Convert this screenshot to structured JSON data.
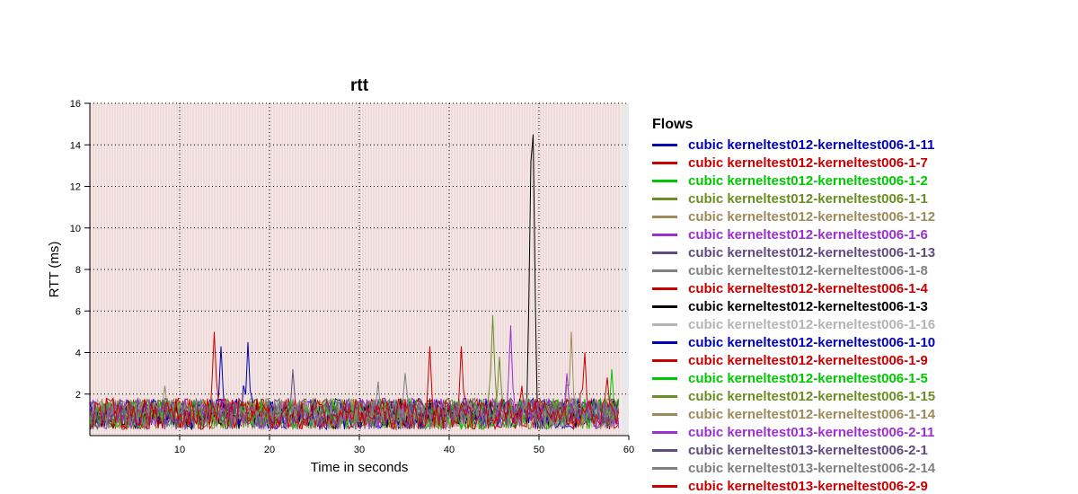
{
  "chart_data": {
    "type": "line",
    "title": "rtt",
    "xlabel": "Time in seconds",
    "ylabel": "RTT (ms)",
    "xlim": [
      0,
      60
    ],
    "ylim": [
      0,
      16
    ],
    "xticks": [
      10,
      20,
      30,
      40,
      50,
      60
    ],
    "yticks": [
      2,
      4,
      6,
      8,
      10,
      12,
      14,
      16
    ],
    "grid": true,
    "legend_title": "Flows",
    "legend_position": "right",
    "baseline_range_ms": [
      0.3,
      1.8
    ],
    "series": [
      {
        "name": "cubic kerneltest012-kerneltest006-1-11",
        "color": "#0000b4",
        "peaks": [
          [
            14.5,
            4.3
          ]
        ]
      },
      {
        "name": "cubic kerneltest012-kerneltest006-1-7",
        "color": "#c80000",
        "peaks": [
          [
            13.8,
            5.0
          ],
          [
            48.0,
            2.4
          ]
        ]
      },
      {
        "name": "cubic kerneltest012-kerneltest006-1-2",
        "color": "#00c800",
        "peaks": [
          [
            58.2,
            3.2
          ]
        ]
      },
      {
        "name": "cubic kerneltest012-kerneltest006-1-1",
        "color": "#6b8e23",
        "peaks": [
          [
            44.8,
            5.8
          ]
        ]
      },
      {
        "name": "cubic kerneltest012-kerneltest006-1-12",
        "color": "#9c8a5a",
        "peaks": [
          [
            53.5,
            5.0
          ]
        ]
      },
      {
        "name": "cubic kerneltest012-kerneltest006-1-6",
        "color": "#9b30d0",
        "peaks": [
          [
            46.8,
            5.3
          ]
        ]
      },
      {
        "name": "cubic kerneltest012-kerneltest006-1-13",
        "color": "#5f4b7f",
        "peaks": [
          [
            22.5,
            3.2
          ]
        ]
      },
      {
        "name": "cubic kerneltest012-kerneltest006-1-8",
        "color": "#808080",
        "peaks": [
          [
            35.0,
            3.0
          ]
        ]
      },
      {
        "name": "cubic kerneltest012-kerneltest006-1-4",
        "color": "#c80000",
        "peaks": [
          [
            37.8,
            4.3
          ]
        ]
      },
      {
        "name": "cubic kerneltest012-kerneltest006-1-3",
        "color": "#000000",
        "peaks": [
          [
            49.3,
            14.5
          ],
          [
            49.1,
            13.2
          ]
        ]
      },
      {
        "name": "cubic kerneltest012-kerneltest006-1-16",
        "color": "#b4b4b4",
        "peaks": []
      },
      {
        "name": "cubic kerneltest012-kerneltest006-1-10",
        "color": "#0000b4",
        "peaks": [
          [
            17.5,
            4.5
          ]
        ]
      },
      {
        "name": "cubic kerneltest012-kerneltest006-1-9",
        "color": "#c80000",
        "peaks": [
          [
            41.3,
            4.3
          ],
          [
            55.0,
            4.0
          ]
        ]
      },
      {
        "name": "cubic kerneltest012-kerneltest006-1-5",
        "color": "#00c800",
        "peaks": []
      },
      {
        "name": "cubic kerneltest012-kerneltest006-1-15",
        "color": "#6b8e23",
        "peaks": [
          [
            45.5,
            3.8
          ]
        ]
      },
      {
        "name": "cubic kerneltest012-kerneltest006-1-14",
        "color": "#9c8a5a",
        "peaks": [
          [
            8.3,
            2.4
          ]
        ]
      },
      {
        "name": "cubic kerneltest013-kerneltest006-2-11",
        "color": "#9b30d0",
        "peaks": [
          [
            53.0,
            3.0
          ]
        ]
      },
      {
        "name": "cubic kerneltest013-kerneltest006-2-1",
        "color": "#5f4b7f",
        "peaks": []
      },
      {
        "name": "cubic kerneltest013-kerneltest006-2-14",
        "color": "#808080",
        "peaks": [
          [
            32.0,
            2.6
          ]
        ]
      },
      {
        "name": "cubic kerneltest013-kerneltest006-2-9",
        "color": "#c80000",
        "peaks": [
          [
            57.5,
            2.8
          ]
        ]
      }
    ]
  }
}
